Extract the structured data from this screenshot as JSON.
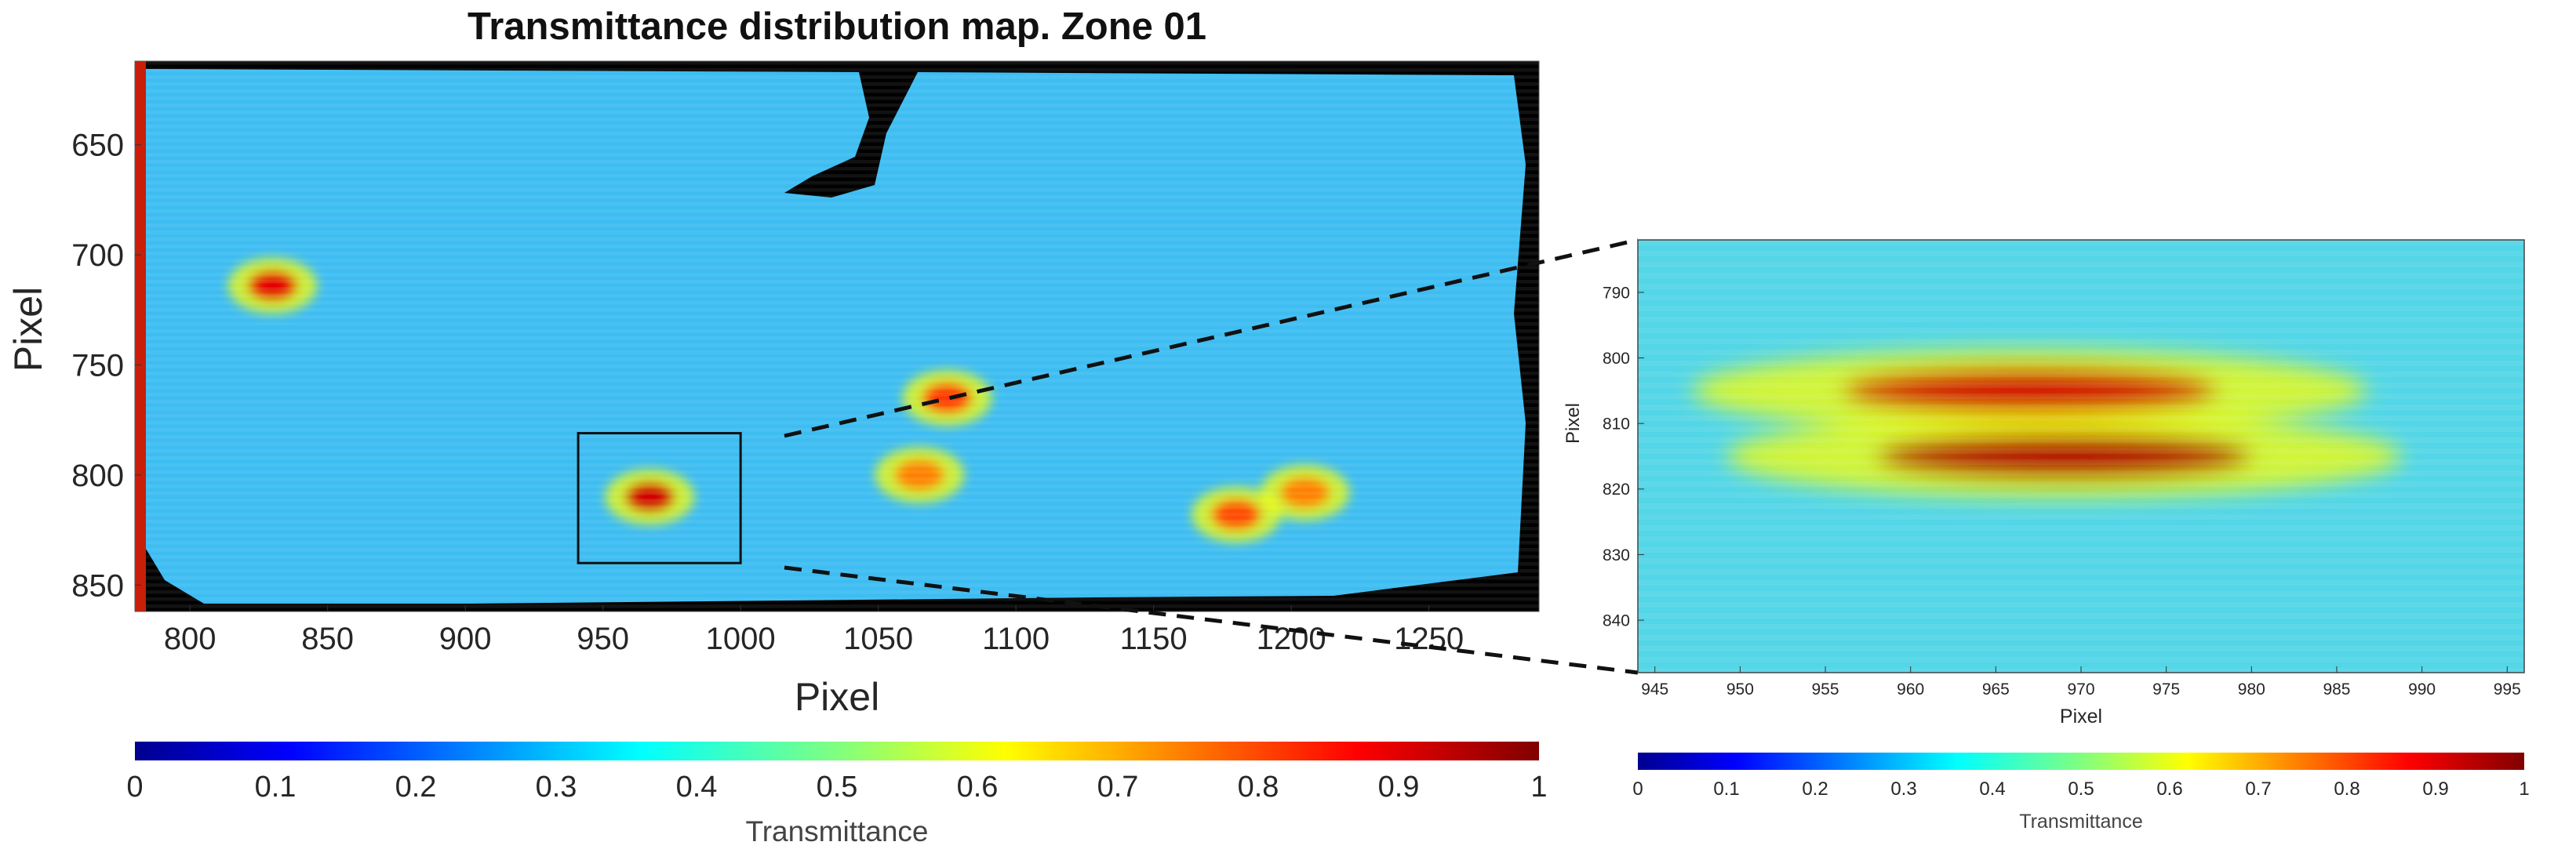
{
  "chart_data": [
    {
      "type": "heatmap",
      "title": "Transmittance distribution map. Zone 01",
      "xlabel": "Pixel",
      "ylabel": "Pixel",
      "xlim": [
        780,
        1290
      ],
      "ylim": [
        612,
        862
      ],
      "y_reversed": true,
      "xticks": [
        800,
        850,
        900,
        950,
        1000,
        1050,
        1100,
        1150,
        1200,
        1250
      ],
      "yticks": [
        650,
        700,
        750,
        800,
        850
      ],
      "highlight_box": {
        "x": [
          941,
          1000
        ],
        "y": [
          781,
          840
        ]
      },
      "colorbar": {
        "label": "Transmittance",
        "range": [
          0,
          1
        ],
        "ticks": [
          "0",
          "0.1",
          "0.2",
          "0.3",
          "0.4",
          "0.5",
          "0.6",
          "0.7",
          "0.8",
          "0.9",
          "1"
        ],
        "colormap": "jet"
      },
      "background_value": 0.35,
      "hotspots": [
        {
          "x": 967,
          "y": 810,
          "value": 0.92
        },
        {
          "x": 1075,
          "y": 765,
          "value": 0.82
        },
        {
          "x": 1065,
          "y": 800,
          "value": 0.75
        },
        {
          "x": 1180,
          "y": 818,
          "value": 0.8
        },
        {
          "x": 1205,
          "y": 808,
          "value": 0.75
        },
        {
          "x": 830,
          "y": 714,
          "value": 0.9
        }
      ]
    },
    {
      "type": "heatmap",
      "title": "",
      "xlabel": "Pixel",
      "ylabel": "Pixel",
      "xlim": [
        944,
        996
      ],
      "ylim": [
        782,
        848
      ],
      "y_reversed": true,
      "xticks": [
        945,
        950,
        955,
        960,
        965,
        970,
        975,
        980,
        985,
        990,
        995
      ],
      "yticks": [
        790,
        800,
        810,
        820,
        830,
        840
      ],
      "colorbar": {
        "label": "Transmittance",
        "range": [
          0,
          1
        ],
        "ticks": [
          "0",
          "0.1",
          "0.2",
          "0.3",
          "0.4",
          "0.5",
          "0.6",
          "0.7",
          "0.8",
          "0.9",
          "1"
        ],
        "colormap": "jet"
      },
      "background_value": 0.42,
      "hotspots": [
        {
          "x": 967,
          "y": 805,
          "value": 0.92
        },
        {
          "x": 969,
          "y": 815,
          "value": 0.95
        }
      ]
    }
  ]
}
